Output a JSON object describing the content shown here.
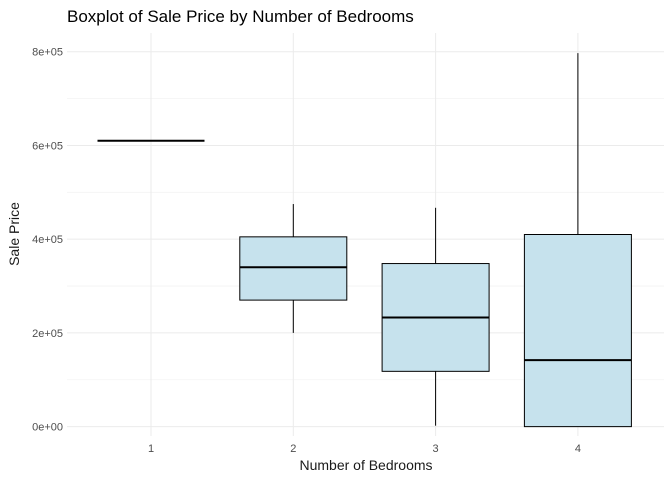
{
  "chart_data": {
    "type": "boxplot",
    "title": "Boxplot of Sale Price by Number of Bedrooms",
    "xlabel": "Number of Bedrooms",
    "ylabel": "Sale Price",
    "categories": [
      "1",
      "2",
      "3",
      "4"
    ],
    "ylim": [
      -20000,
      840000
    ],
    "yticks": [
      0,
      200000,
      400000,
      600000,
      800000
    ],
    "ytick_labels": [
      "0e+00",
      "2e+05",
      "4e+05",
      "6e+05",
      "8e+05"
    ],
    "grid": true,
    "box_fill": "#c6e2ed",
    "box_stroke": "#000000",
    "boxes": [
      {
        "category": "1",
        "min": 610000,
        "q1": 610000,
        "median": 610000,
        "q3": 610000,
        "max": 610000
      },
      {
        "category": "2",
        "min": 200000,
        "q1": 270000,
        "median": 340000,
        "q3": 405000,
        "max": 475000
      },
      {
        "category": "3",
        "min": 2000,
        "q1": 118000,
        "median": 233000,
        "q3": 348000,
        "max": 467000
      },
      {
        "category": "4",
        "min": 0,
        "q1": 0,
        "median": 142000,
        "q3": 410000,
        "max": 797000
      }
    ]
  }
}
